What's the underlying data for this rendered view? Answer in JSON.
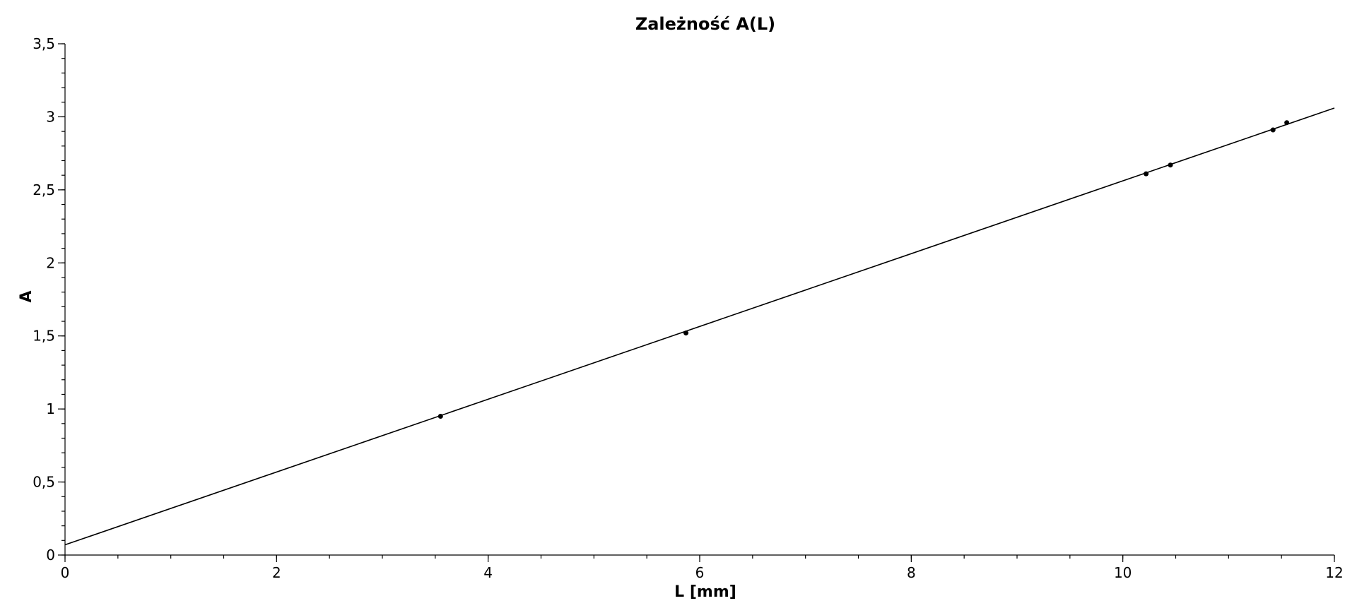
{
  "chart_data": {
    "type": "scatter",
    "title": "Zależność A(L)",
    "xlabel": "L [mm]",
    "ylabel": "A",
    "xlim": [
      0,
      12
    ],
    "ylim": [
      0,
      3.5
    ],
    "x_ticks": [
      0,
      2,
      4,
      6,
      8,
      10,
      12
    ],
    "x_tick_labels": [
      "0",
      "2",
      "4",
      "6",
      "8",
      "10",
      "12"
    ],
    "x_minor_step": 0.5,
    "y_ticks": [
      0,
      0.5,
      1,
      1.5,
      2,
      2.5,
      3,
      3.5
    ],
    "y_tick_labels": [
      "0",
      "0,5",
      "1",
      "1,5",
      "2",
      "2,5",
      "3",
      "3,5"
    ],
    "y_minor_step": 0.1,
    "grid": false,
    "series": [
      {
        "points": [
          {
            "x": 3.55,
            "y": 0.95
          },
          {
            "x": 5.87,
            "y": 1.52
          },
          {
            "x": 10.22,
            "y": 2.61
          },
          {
            "x": 10.45,
            "y": 2.67
          },
          {
            "x": 11.42,
            "y": 2.91
          },
          {
            "x": 11.55,
            "y": 2.96
          }
        ]
      }
    ],
    "fit_line": {
      "x": [
        0,
        12
      ],
      "y": [
        0.07,
        3.06
      ]
    }
  }
}
